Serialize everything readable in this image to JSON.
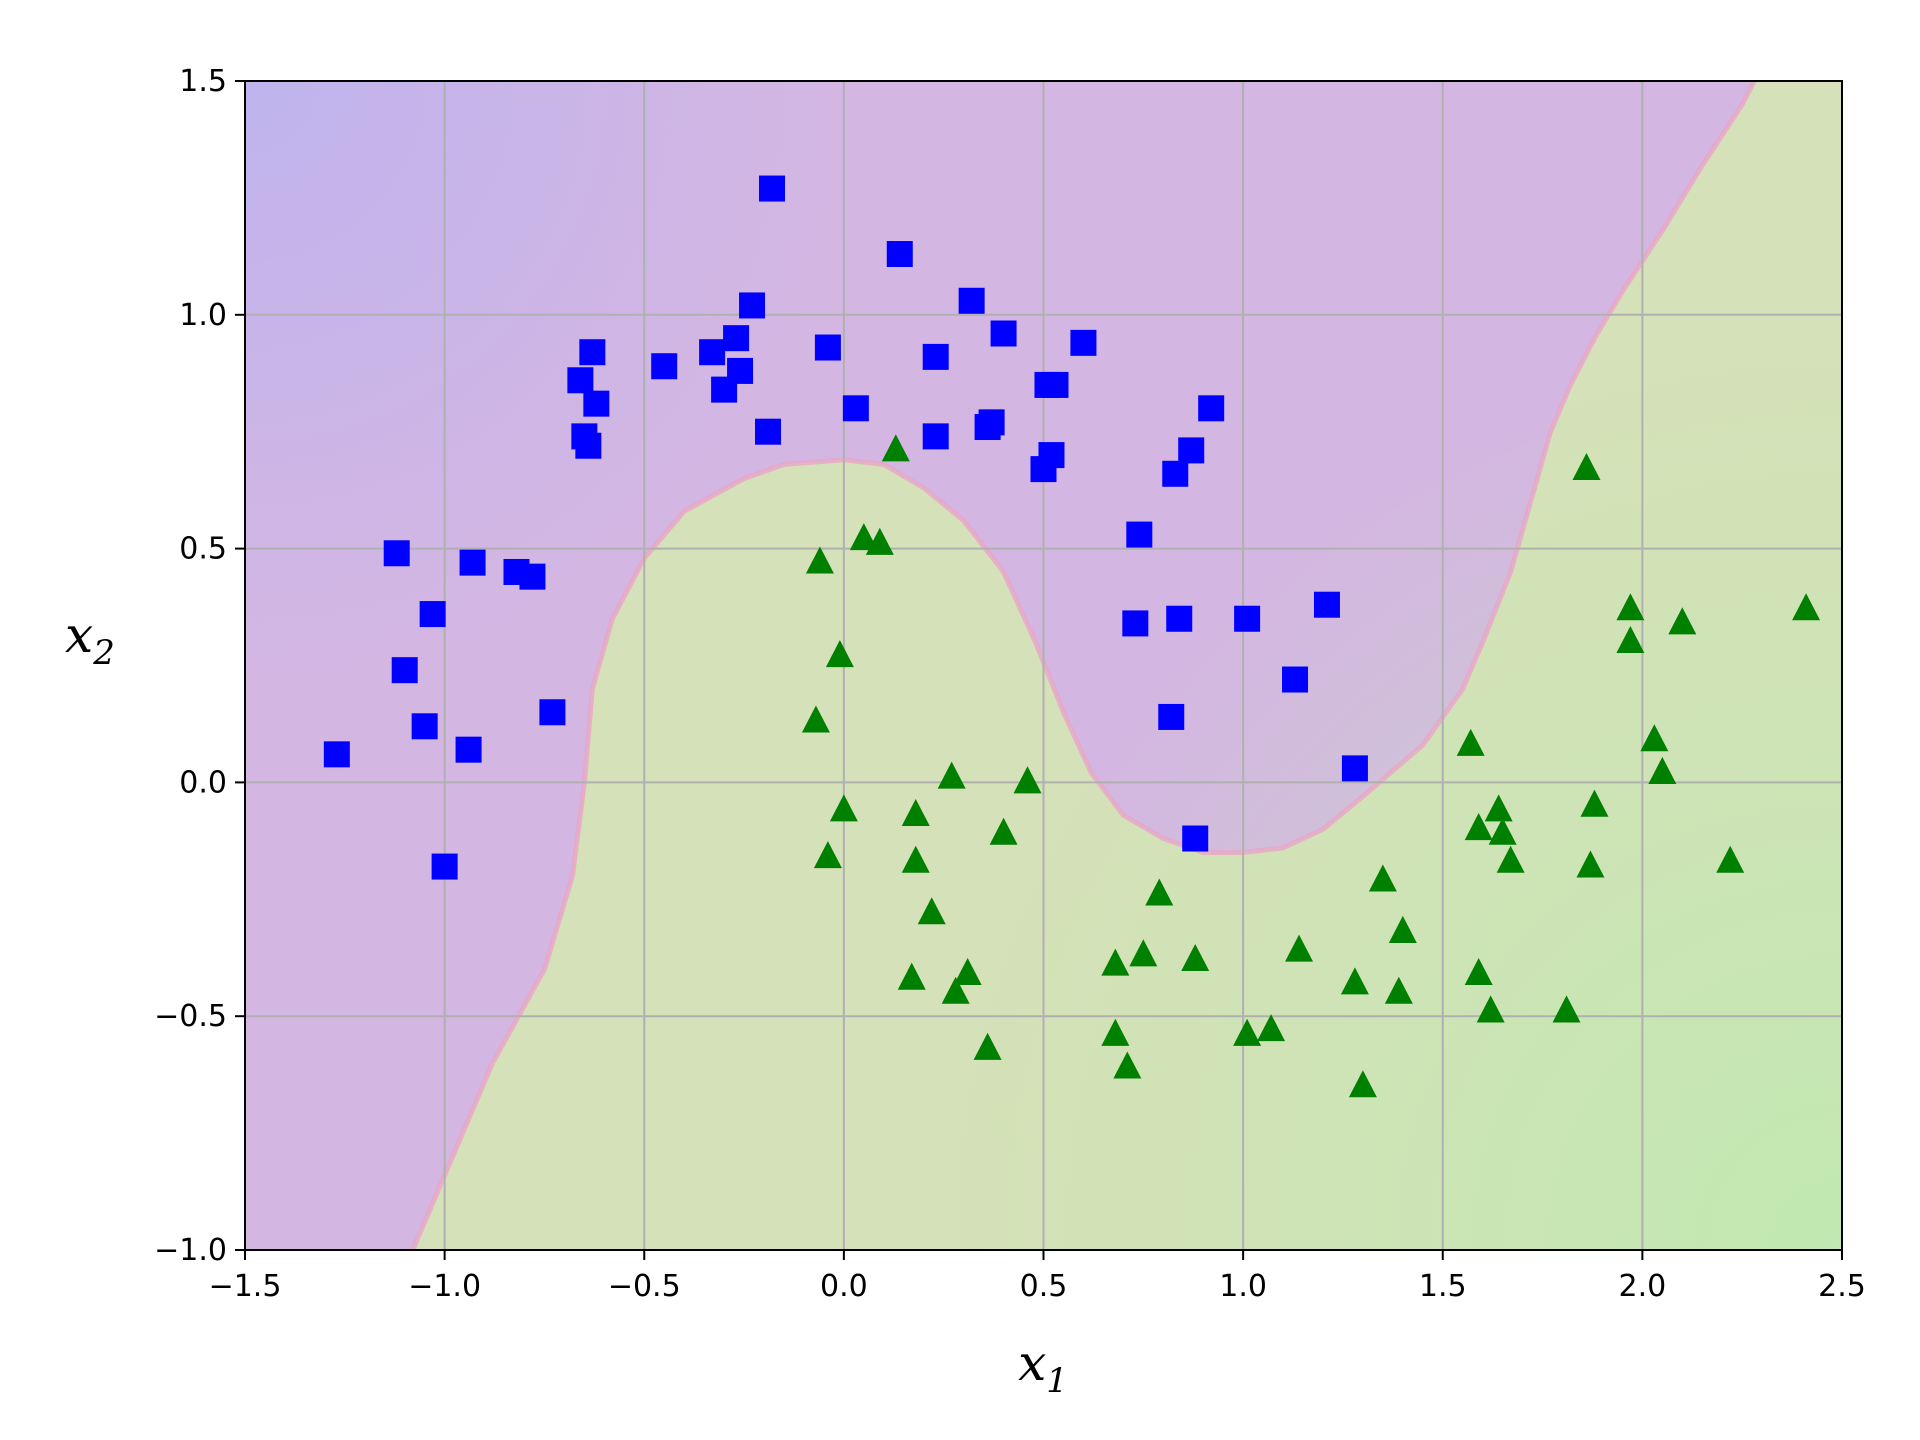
{
  "chart_data": {
    "type": "scatter",
    "title": "",
    "xlabel": "x",
    "xlabel_sub": "1",
    "ylabel": "x",
    "ylabel_sub": "2",
    "xlim": [
      -1.5,
      2.5
    ],
    "ylim": [
      -1.0,
      1.5
    ],
    "xticks": [
      -1.5,
      -1.0,
      -0.5,
      0.0,
      0.5,
      1.0,
      1.5,
      2.0,
      2.5
    ],
    "yticks": [
      -1.0,
      -0.5,
      0.0,
      0.5,
      1.0,
      1.5
    ],
    "xtick_labels": [
      "−1.5",
      "−1.0",
      "−0.5",
      "0.0",
      "0.5",
      "1.0",
      "1.5",
      "2.0",
      "2.5"
    ],
    "ytick_labels": [
      "−1.0",
      "−0.5",
      "0.0",
      "0.5",
      "1.0",
      "1.5"
    ],
    "grid": true,
    "background_regions": {
      "class_0_color": "#d4b6e2",
      "class_1_color": "#d5e1b8",
      "corner_blue_color": "#bbb3f0",
      "corner_green_color": "#bdeab0",
      "decision_boundary": [
        [
          -1.08,
          -1.0
        ],
        [
          -0.98,
          -0.8
        ],
        [
          -0.88,
          -0.6
        ],
        [
          -0.75,
          -0.4
        ],
        [
          -0.68,
          -0.2
        ],
        [
          -0.65,
          0.0
        ],
        [
          -0.63,
          0.2
        ],
        [
          -0.58,
          0.35
        ],
        [
          -0.5,
          0.48
        ],
        [
          -0.4,
          0.58
        ],
        [
          -0.25,
          0.65
        ],
        [
          -0.15,
          0.68
        ],
        [
          0.0,
          0.69
        ],
        [
          0.1,
          0.68
        ],
        [
          0.2,
          0.63
        ],
        [
          0.3,
          0.56
        ],
        [
          0.4,
          0.45
        ],
        [
          0.48,
          0.3
        ],
        [
          0.55,
          0.15
        ],
        [
          0.62,
          0.02
        ],
        [
          0.7,
          -0.07
        ],
        [
          0.8,
          -0.12
        ],
        [
          0.9,
          -0.15
        ],
        [
          1.0,
          -0.15
        ],
        [
          1.1,
          -0.14
        ],
        [
          1.2,
          -0.1
        ],
        [
          1.3,
          -0.03
        ],
        [
          1.45,
          0.08
        ],
        [
          1.55,
          0.2
        ],
        [
          1.6,
          0.3
        ],
        [
          1.67,
          0.45
        ],
        [
          1.72,
          0.6
        ],
        [
          1.77,
          0.75
        ],
        [
          1.82,
          0.85
        ],
        [
          1.88,
          0.95
        ],
        [
          1.95,
          1.05
        ],
        [
          2.05,
          1.18
        ],
        [
          2.15,
          1.32
        ],
        [
          2.25,
          1.45
        ],
        [
          2.28,
          1.5
        ]
      ]
    },
    "series": [
      {
        "marker": "square",
        "color": "#0000ff",
        "points": [
          [
            -0.18,
            1.27
          ],
          [
            0.14,
            1.13
          ],
          [
            0.32,
            1.03
          ],
          [
            -0.23,
            1.02
          ],
          [
            0.4,
            0.96
          ],
          [
            -0.27,
            0.95
          ],
          [
            0.6,
            0.94
          ],
          [
            -0.04,
            0.93
          ],
          [
            -0.63,
            0.92
          ],
          [
            -0.33,
            0.92
          ],
          [
            0.23,
            0.91
          ],
          [
            -0.45,
            0.89
          ],
          [
            -0.26,
            0.88
          ],
          [
            -0.66,
            0.86
          ],
          [
            0.51,
            0.85
          ],
          [
            0.53,
            0.85
          ],
          [
            -0.3,
            0.84
          ],
          [
            -0.62,
            0.81
          ],
          [
            0.03,
            0.8
          ],
          [
            0.92,
            0.8
          ],
          [
            0.37,
            0.77
          ],
          [
            0.36,
            0.76
          ],
          [
            -0.19,
            0.75
          ],
          [
            -0.65,
            0.74
          ],
          [
            0.23,
            0.74
          ],
          [
            -0.64,
            0.72
          ],
          [
            0.87,
            0.71
          ],
          [
            0.52,
            0.7
          ],
          [
            0.5,
            0.67
          ],
          [
            0.83,
            0.66
          ],
          [
            0.74,
            0.53
          ],
          [
            -1.12,
            0.49
          ],
          [
            -0.93,
            0.47
          ],
          [
            -0.82,
            0.45
          ],
          [
            -0.78,
            0.44
          ],
          [
            1.21,
            0.38
          ],
          [
            -1.03,
            0.36
          ],
          [
            1.01,
            0.35
          ],
          [
            0.84,
            0.35
          ],
          [
            0.73,
            0.34
          ],
          [
            -1.1,
            0.24
          ],
          [
            1.13,
            0.22
          ],
          [
            -0.73,
            0.15
          ],
          [
            0.82,
            0.14
          ],
          [
            -1.05,
            0.12
          ],
          [
            -0.94,
            0.07
          ],
          [
            -1.27,
            0.06
          ],
          [
            1.28,
            0.03
          ],
          [
            0.88,
            -0.12
          ],
          [
            -1.0,
            -0.18
          ]
        ]
      },
      {
        "marker": "triangle",
        "color": "#008000",
        "points": [
          [
            0.13,
            0.71
          ],
          [
            1.86,
            0.67
          ],
          [
            0.05,
            0.52
          ],
          [
            0.09,
            0.51
          ],
          [
            -0.06,
            0.47
          ],
          [
            2.41,
            0.37
          ],
          [
            1.97,
            0.37
          ],
          [
            2.1,
            0.34
          ],
          [
            1.97,
            0.3
          ],
          [
            -0.01,
            0.27
          ],
          [
            -0.07,
            0.13
          ],
          [
            2.03,
            0.09
          ],
          [
            1.57,
            0.08
          ],
          [
            2.05,
            0.02
          ],
          [
            0.27,
            0.01
          ],
          [
            0.46,
            0.0
          ],
          [
            0.0,
            -0.06
          ],
          [
            1.64,
            -0.06
          ],
          [
            0.18,
            -0.07
          ],
          [
            1.88,
            -0.05
          ],
          [
            1.59,
            -0.1
          ],
          [
            1.65,
            -0.11
          ],
          [
            0.4,
            -0.11
          ],
          [
            -0.04,
            -0.16
          ],
          [
            1.67,
            -0.17
          ],
          [
            0.18,
            -0.17
          ],
          [
            2.22,
            -0.17
          ],
          [
            1.87,
            -0.18
          ],
          [
            1.35,
            -0.21
          ],
          [
            0.79,
            -0.24
          ],
          [
            0.22,
            -0.28
          ],
          [
            1.4,
            -0.32
          ],
          [
            1.14,
            -0.36
          ],
          [
            0.75,
            -0.37
          ],
          [
            0.68,
            -0.39
          ],
          [
            0.88,
            -0.38
          ],
          [
            1.59,
            -0.41
          ],
          [
            0.31,
            -0.41
          ],
          [
            0.17,
            -0.42
          ],
          [
            1.28,
            -0.43
          ],
          [
            0.28,
            -0.45
          ],
          [
            1.39,
            -0.45
          ],
          [
            1.62,
            -0.49
          ],
          [
            1.81,
            -0.49
          ],
          [
            1.07,
            -0.53
          ],
          [
            0.68,
            -0.54
          ],
          [
            1.01,
            -0.54
          ],
          [
            0.36,
            -0.57
          ],
          [
            0.71,
            -0.61
          ],
          [
            1.3,
            -0.65
          ]
        ]
      }
    ]
  }
}
